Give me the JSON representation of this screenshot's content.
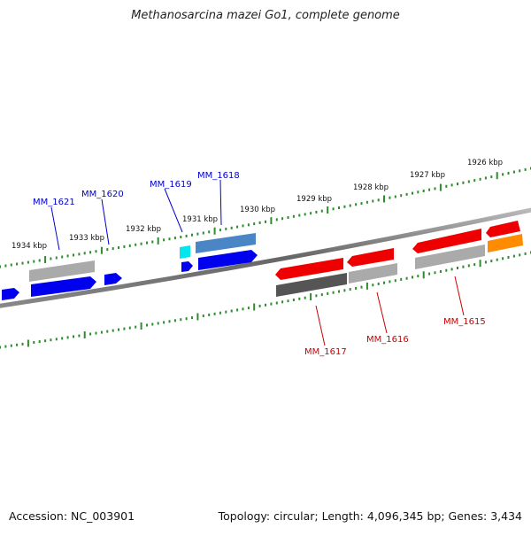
{
  "title": "Methanosarcina mazei Go1, complete genome",
  "footer": {
    "accession": "Accession: NC_003901",
    "summary": "Topology: circular; Length: 4,096,345 bp; Genes: 3,434"
  },
  "ruler": {
    "tick_color": "#2e8b2e",
    "labels": [
      "1926 kbp",
      "1927 kbp",
      "1928 kbp",
      "1929 kbp",
      "1930 kbp",
      "1931 kbp",
      "1932 kbp",
      "1933 kbp",
      "1934 kbp"
    ]
  },
  "genes": [
    {
      "id": "g1",
      "strand": "forward",
      "color": "#0000ee"
    },
    {
      "id": "g2",
      "strand": "forward",
      "color": "#aaaaaa"
    },
    {
      "id": "g3",
      "strand": "forward",
      "color": "#0000ee"
    },
    {
      "id": "g4",
      "strand": "forward",
      "color": "#0000ee"
    },
    {
      "id": "g5",
      "strand": "forward",
      "color": "#00e5ee"
    },
    {
      "id": "g6",
      "strand": "forward",
      "color": "#0000ee"
    },
    {
      "id": "g7",
      "strand": "forward",
      "color": "#0000ee"
    },
    {
      "id": "g8",
      "strand": "forward",
      "color": "#4a86c5"
    },
    {
      "id": "g9",
      "strand": "reverse",
      "color": "#ee0000"
    },
    {
      "id": "g10",
      "strand": "reverse",
      "color": "#555555"
    },
    {
      "id": "g11",
      "strand": "reverse",
      "color": "#ee0000"
    },
    {
      "id": "g12",
      "strand": "reverse",
      "color": "#aaaaaa"
    },
    {
      "id": "g13",
      "strand": "reverse",
      "color": "#ee0000"
    },
    {
      "id": "g14",
      "strand": "reverse",
      "color": "#aaaaaa"
    },
    {
      "id": "g15",
      "strand": "reverse",
      "color": "#ee0000"
    },
    {
      "id": "g16",
      "strand": "reverse",
      "color": "#ff8c00"
    }
  ],
  "labels": [
    {
      "text": "MM_1621",
      "color": "#0000cc"
    },
    {
      "text": "MM_1620",
      "color": "#0000cc"
    },
    {
      "text": "MM_1619",
      "color": "#0000cc"
    },
    {
      "text": "MM_1618",
      "color": "#0000cc"
    },
    {
      "text": "MM_1617",
      "color": "#cc0000"
    },
    {
      "text": "MM_1616",
      "color": "#cc0000"
    },
    {
      "text": "MM_1615",
      "color": "#cc0000"
    }
  ]
}
